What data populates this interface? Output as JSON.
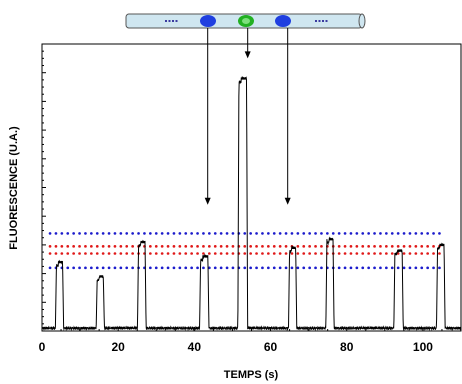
{
  "chart_data": {
    "type": "line",
    "title": "",
    "xlabel": "TEMPS (s)",
    "ylabel": "FLUORESCENCE (U.A.)",
    "xlim": [
      0,
      110
    ],
    "ylim": [
      0,
      100
    ],
    "x_ticks": [
      "0",
      "20",
      "40",
      "60",
      "80",
      "100"
    ],
    "x_tick_values": [
      0,
      20,
      40,
      60,
      80,
      100
    ],
    "y_tick_labels_shown": false,
    "grid": false,
    "series": [
      {
        "color": "#000000",
        "baseline": 1,
        "peaks": [
          {
            "center": 4.6,
            "width": 1.6,
            "height": 24
          },
          {
            "center": 15.3,
            "width": 1.6,
            "height": 19
          },
          {
            "center": 26.2,
            "width": 1.7,
            "height": 31
          },
          {
            "center": 42.6,
            "width": 1.9,
            "height": 26
          },
          {
            "center": 52.7,
            "width": 2.0,
            "height": 88
          },
          {
            "center": 65.8,
            "width": 1.6,
            "height": 29
          },
          {
            "center": 75.6,
            "width": 1.6,
            "height": 32
          },
          {
            "center": 93.6,
            "width": 1.9,
            "height": 28
          },
          {
            "center": 104.7,
            "width": 1.7,
            "height": 30
          }
        ]
      }
    ],
    "reference_lines": [
      {
        "y": 34,
        "color": "#1c1ccc",
        "style": "dotted"
      },
      {
        "y": 29.5,
        "color": "#e01818",
        "style": "dotted"
      },
      {
        "y": 27,
        "color": "#e01818",
        "style": "dotted"
      },
      {
        "y": 22,
        "color": "#1c1ccc",
        "style": "dotted"
      }
    ],
    "arrows": [
      {
        "x": 43.5,
        "to_y": 44
      },
      {
        "x": 54.0,
        "to_y": 95
      },
      {
        "x": 64.5,
        "to_y": 44
      }
    ],
    "capillary": {
      "tube_color": "#cfe6f0",
      "dash_color": "#3a3aa0",
      "blue_droplet_color": "#1f3fe0",
      "green_droplet_color": "#22b022"
    }
  }
}
